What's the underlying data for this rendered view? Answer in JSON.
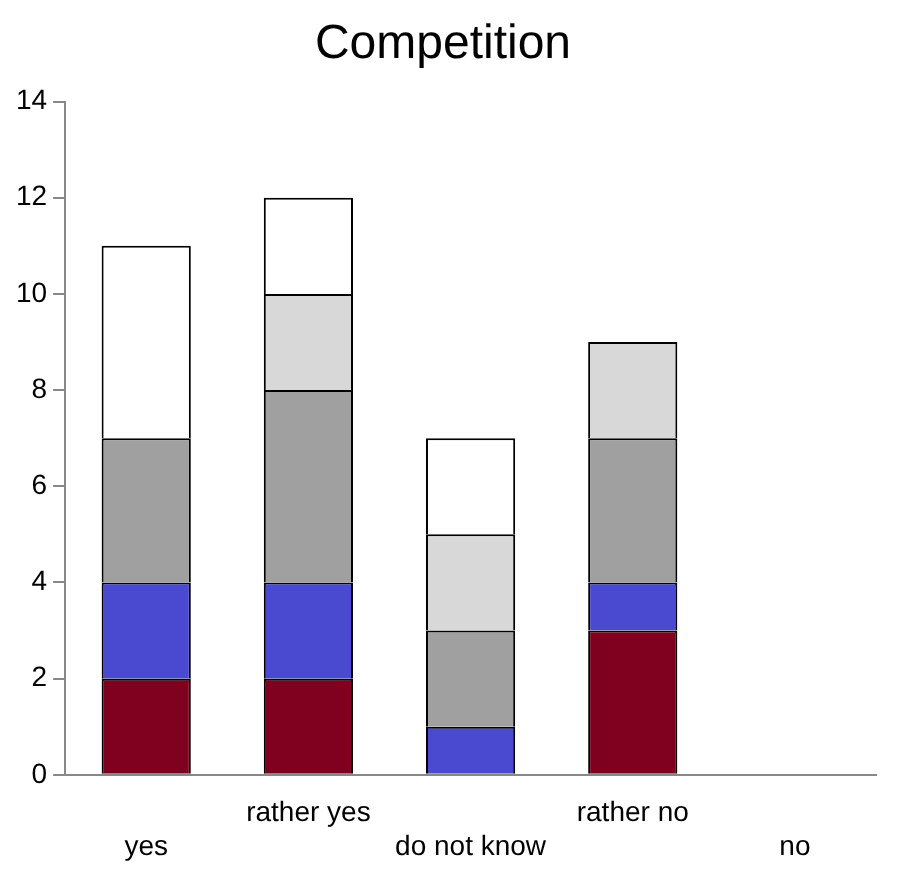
{
  "chart_data": {
    "type": "bar",
    "title": "Competition",
    "stacked": true,
    "categories": [
      "yes",
      "rather yes",
      "do not know",
      "rather no",
      "no"
    ],
    "series": [
      {
        "color": "#800020",
        "values": [
          2,
          2,
          0,
          3,
          0
        ]
      },
      {
        "color": "#4a4ad0",
        "values": [
          2,
          2,
          1,
          1,
          0
        ]
      },
      {
        "color": "#a0a0a0",
        "values": [
          3,
          4,
          2,
          3,
          0
        ]
      },
      {
        "color": "#d8d8d8",
        "values": [
          0,
          2,
          2,
          2,
          0
        ]
      },
      {
        "color": "#ffffff",
        "values": [
          4,
          2,
          2,
          0,
          0
        ]
      }
    ],
    "ylim": [
      0,
      14
    ],
    "yticks": [
      0,
      2,
      4,
      6,
      8,
      10,
      12,
      14
    ],
    "grid": false,
    "legend": false
  }
}
